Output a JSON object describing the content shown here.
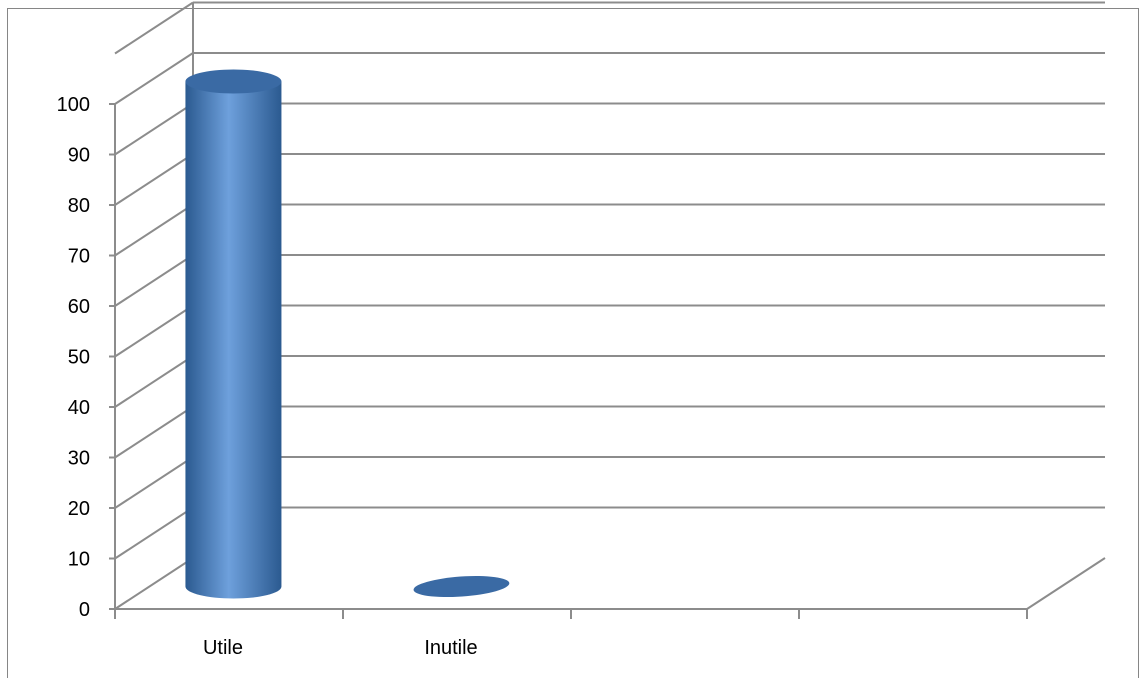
{
  "chart_data": {
    "type": "bar",
    "style": "3d-cylinder",
    "categories": [
      "Utile",
      "Inutile",
      "",
      ""
    ],
    "values": [
      100,
      0,
      null,
      null
    ],
    "ylim": [
      0,
      100
    ],
    "yticks": [
      "0",
      "10",
      "20",
      "30",
      "40",
      "50",
      "60",
      "70",
      "80",
      "90",
      "100"
    ],
    "grid": true,
    "colors": {
      "bar": "#4a7ebb",
      "bar_dark": "#2b5a90",
      "bar_light": "#6ea0dc",
      "bar_top": "#3a6aa4",
      "grid": "#8c8c8c"
    }
  }
}
